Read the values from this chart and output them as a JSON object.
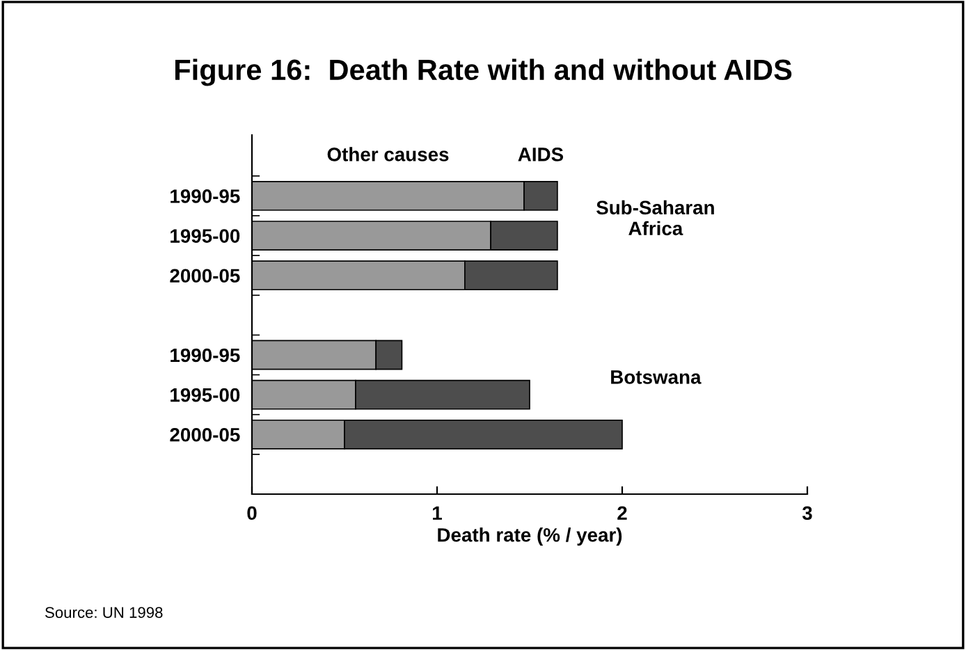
{
  "chart_data": {
    "type": "bar",
    "orientation": "horizontal",
    "stacked": true,
    "title": "Figure 16:  Death Rate with and without AIDS",
    "xlabel": "Death rate (% / year)",
    "categories": [
      "1990-95",
      "1995-00",
      "2000-05",
      null,
      "1990-95",
      "1995-00",
      "2000-05"
    ],
    "series": [
      {
        "name": "Other causes",
        "color": "#999999",
        "values": [
          1.47,
          1.29,
          1.15,
          null,
          0.67,
          0.56,
          0.5
        ]
      },
      {
        "name": "AIDS",
        "color": "#4d4d4d",
        "values": [
          0.18,
          0.36,
          0.5,
          null,
          0.14,
          0.94,
          1.5
        ]
      }
    ],
    "xlim": [
      0,
      3
    ],
    "xticks": [
      0,
      1,
      2,
      3
    ],
    "grid": false,
    "legend": false,
    "annotations": [
      "Sub-Saharan\nAfrica",
      "Botswana",
      "Source: UN 1998"
    ]
  }
}
